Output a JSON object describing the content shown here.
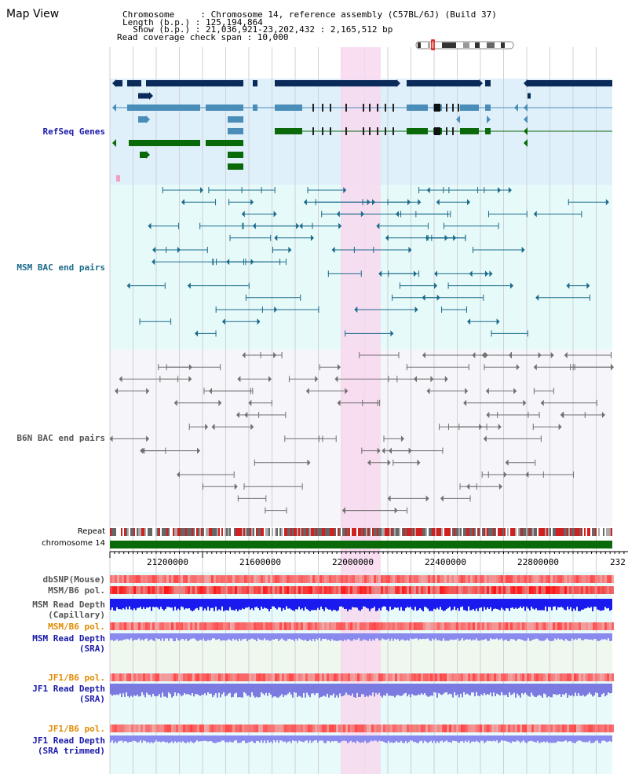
{
  "page": {
    "title": "Map View"
  },
  "header": {
    "chromosome_line": "Chromosome     : Chromosome 14, reference assembly (C57BL/6J) (Build 37)",
    "length_line": "Length (b.p.) : 125,194,864",
    "show_line": "  Show (b.p.) : 21,036,921-23,202,432 : 2,165,512 bp",
    "coverage_line": "Read coverage check span : 10,000"
  },
  "tracks": {
    "refseq": "RefSeq Genes",
    "msm_bac": "MSM BAC end pairs",
    "b6n_bac": "B6N BAC end pairs",
    "repeat": "Repeat",
    "chromosome": "chromosome 14",
    "dbsnp": "dbSNP(Mouse)",
    "msm_b6_pol": "MSM/B6 pol.",
    "msm_read_cap_1": "MSM Read Depth",
    "msm_read_cap_2": "(Capillary)",
    "msm_b6_pol2": "MSM/B6 pol.",
    "msm_read_sra_1": "MSM Read Depth",
    "msm_read_sra_2": "(SRA)",
    "jf1_b6_pol": "JF1/B6 pol.",
    "jf1_read_sra_1": "JF1 Read Depth",
    "jf1_read_sra_2": "(SRA)",
    "jf1_b6_pol2": "JF1/B6 pol.",
    "jf1_read_trim_1": "JF1 Read Depth",
    "jf1_read_trim_2": "(SRA trimmed)"
  },
  "ruler": {
    "ticks": [
      "21200000",
      "21600000",
      "22000000",
      "22400000",
      "22800000",
      "232"
    ]
  },
  "colors": {
    "refseq_bg": "#dff0fa",
    "msm_bg": "#e6fafa",
    "b6n_bg": "#f5f5fa",
    "lower_bg": "#e8fafa",
    "highlight": "#f8d8ef",
    "refseq_navy": "#0a2a5a",
    "refseq_blue": "#4a8db8",
    "refseq_green": "#0a6a0a",
    "msm_line": "#1a6a8a",
    "b6n_line": "#707070",
    "chromosome_green": "#0a6a0a",
    "label_blue": "#1a1aaa",
    "label_teal": "#1a6a8a",
    "label_orange": "#e08a00",
    "label_gray": "#555555"
  }
}
